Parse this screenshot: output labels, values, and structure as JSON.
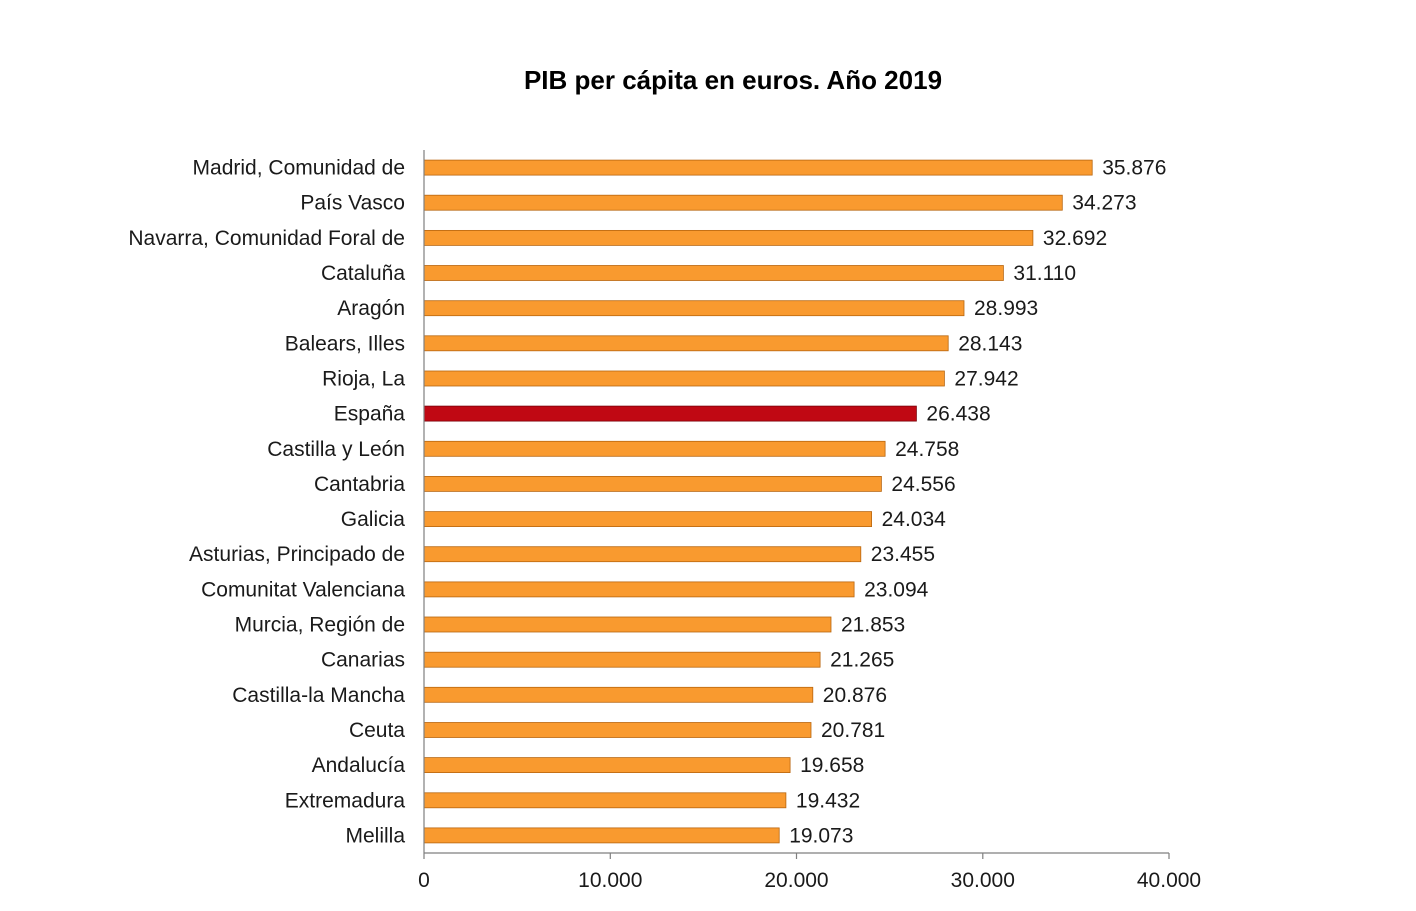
{
  "chart_data": {
    "type": "bar",
    "orientation": "horizontal",
    "title": "PIB per cápita en euros. Año 2019",
    "xlabel": "",
    "ylabel": "",
    "xlim": [
      0,
      40000
    ],
    "ticks": [
      0,
      10000,
      20000,
      30000,
      40000
    ],
    "tick_labels": [
      "0",
      "10.000",
      "20.000",
      "30.000",
      "40.000"
    ],
    "grid": false,
    "legend": "none",
    "categories": [
      "Madrid, Comunidad de",
      "País Vasco",
      "Navarra, Comunidad Foral de",
      "Cataluña",
      "Aragón",
      "Balears, Illes",
      "Rioja, La",
      "España",
      "Castilla y León",
      "Cantabria",
      "Galicia",
      "Asturias, Principado de",
      "Comunitat Valenciana",
      "Murcia, Región de",
      "Canarias",
      "Castilla-la Mancha",
      "Ceuta",
      "Andalucía",
      "Extremadura",
      "Melilla"
    ],
    "values": [
      35876,
      34273,
      32692,
      31110,
      28993,
      28143,
      27942,
      26438,
      24758,
      24556,
      24034,
      23455,
      23094,
      21853,
      21265,
      20876,
      20781,
      19658,
      19432,
      19073
    ],
    "value_labels": [
      "35.876",
      "34.273",
      "32.692",
      "31.110",
      "28.993",
      "28.143",
      "27.942",
      "26.438",
      "24.758",
      "24.556",
      "24.034",
      "23.455",
      "23.094",
      "21.853",
      "21.265",
      "20.876",
      "20.781",
      "19.658",
      "19.432",
      "19.073"
    ],
    "colors": {
      "bar": "#f99a2f",
      "bar_border": "#b8660f",
      "highlight": "#c00813",
      "highlight_border": "#7a0008",
      "highlight_category": "España"
    }
  }
}
